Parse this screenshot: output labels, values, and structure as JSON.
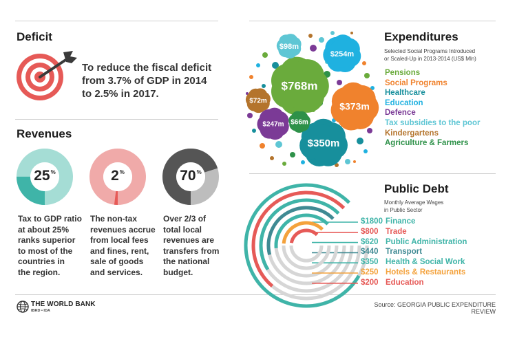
{
  "deficit": {
    "heading": "Deficit",
    "text_lines": [
      "To reduce the fiscal deficit",
      "from 3.7% of GDP in 2014",
      "to 2.5% in 2017."
    ],
    "icon": "target-arrow-icon"
  },
  "revenues": {
    "heading": "Revenues",
    "items": [
      {
        "value": "25",
        "unit": "%",
        "fraction": 0.25,
        "color": "#3fb4a8",
        "track": "#a5ddd5",
        "caption_lines": [
          "Tax to GDP ratio",
          "at about 25%",
          "ranks superior",
          "to most of the",
          "countries in",
          "the region."
        ]
      },
      {
        "value": "2",
        "unit": "%",
        "fraction": 0.02,
        "color": "#e65a57",
        "track": "#f0aaa9",
        "caption_lines": [
          "The non-tax",
          "revenues accrue",
          "from local fees",
          "and fines, rent,",
          "sale of goods",
          "and services."
        ]
      },
      {
        "value": "70",
        "unit": "%",
        "fraction": 0.7,
        "color": "#555555",
        "track": "#bdbdbd",
        "caption_lines": [
          "Over 2/3 of",
          "total local",
          "revenues are",
          "transfers from",
          "the national",
          "budget."
        ]
      }
    ]
  },
  "expenditures": {
    "heading": "Expenditures",
    "subtitle_lines": [
      "Selected Social Programs Introduced",
      "or Scaled-Up in 2013-2014 (US$ Mln)"
    ],
    "legend": [
      {
        "label": "Pensions",
        "color": "#6aab3c"
      },
      {
        "label": "Social Programs",
        "color": "#f0822d"
      },
      {
        "label": "Healthcare",
        "color": "#178f9c"
      },
      {
        "label": "Education",
        "color": "#1fb1e0"
      },
      {
        "label": "Defence",
        "color": "#7b3a96"
      },
      {
        "label": "Tax subsidies to the poor",
        "color": "#5ec6d4"
      },
      {
        "label": "Kindergartens",
        "color": "#b4742c"
      },
      {
        "label": "Agriculture & Farmers",
        "color": "#2e9149"
      }
    ]
  },
  "public_debt": {
    "heading": "Public Debt",
    "subtitle_lines": [
      "Monthly Average Wages",
      "in Public Sector"
    ]
  },
  "chart_data": [
    {
      "type": "bubble",
      "title": "Expenditures",
      "series": [
        {
          "name": "Pensions",
          "value": 768,
          "label": "$768m",
          "color": "#6aab3c"
        },
        {
          "name": "Social Programs",
          "value": 373,
          "label": "$373m",
          "color": "#f0822d"
        },
        {
          "name": "Healthcare",
          "value": 350,
          "label": "$350m",
          "color": "#178f9c"
        },
        {
          "name": "Education",
          "value": 254,
          "label": "$254m",
          "color": "#1fb1e0"
        },
        {
          "name": "Defence",
          "value": 247,
          "label": "$247m",
          "color": "#7b3a96"
        },
        {
          "name": "Tax subsidies to the poor",
          "value": 98,
          "label": "$98m",
          "color": "#5ec6d4"
        },
        {
          "name": "Kindergartens",
          "value": 72,
          "label": "$72m",
          "color": "#b4742c"
        },
        {
          "name": "Agriculture & Farmers",
          "value": 66,
          "label": "$66m",
          "color": "#2e9149"
        }
      ]
    },
    {
      "type": "radial-bar",
      "title": "Public Debt",
      "unit": "$",
      "series": [
        {
          "name": "Finance",
          "value": 1800,
          "label": "$1800",
          "color": "#3fb4a8"
        },
        {
          "name": "Trade",
          "value": 800,
          "label": "$800",
          "color": "#e65a57"
        },
        {
          "name": "Public Administration",
          "value": 620,
          "label": "$620",
          "color": "#3fb4a8"
        },
        {
          "name": "Transport",
          "value": 440,
          "label": "$440",
          "color": "#3f8a93"
        },
        {
          "name": "Health & Social Work",
          "value": 350,
          "label": "$350",
          "color": "#3fb4a8"
        },
        {
          "name": "Hotels & Restaurants",
          "value": 250,
          "label": "$250",
          "color": "#f4a23c"
        },
        {
          "name": "Education",
          "value": 200,
          "label": "$200",
          "color": "#e65a57"
        }
      ]
    }
  ],
  "footer": {
    "brand": "THE WORLD BANK",
    "brand_sub": "IBRD • IDA",
    "source": "Source: GEORGIA PUBLIC EXPENDITURE REVIEW"
  }
}
